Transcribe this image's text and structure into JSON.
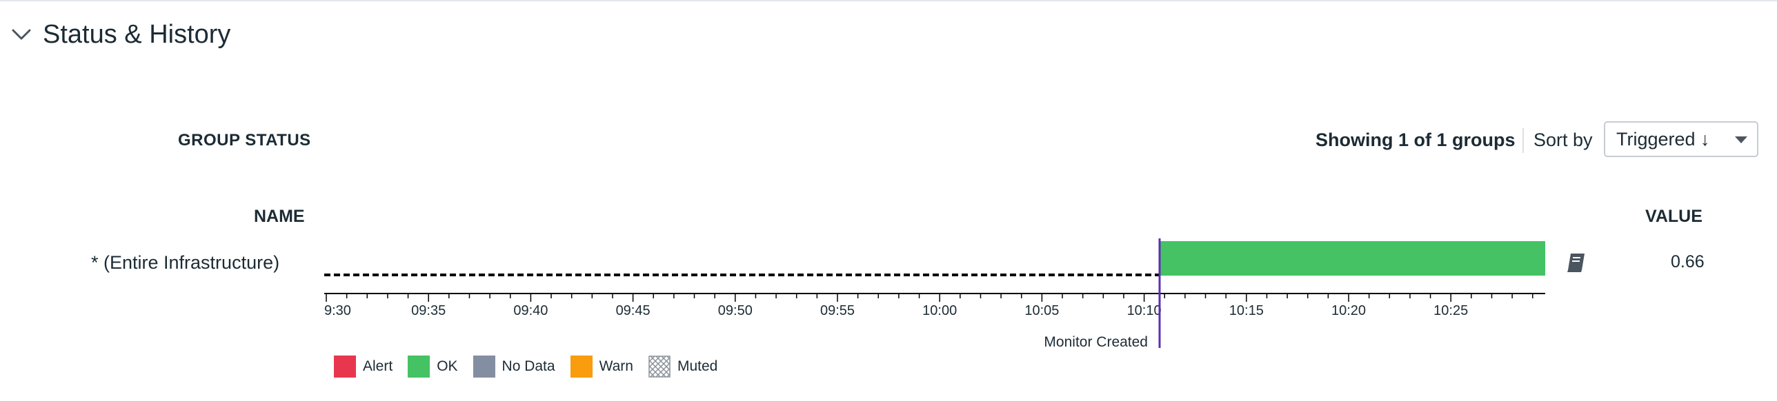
{
  "section": {
    "title": "Status & History"
  },
  "group_status": {
    "label": "GROUP STATUS",
    "showing": "Showing 1 of 1 groups",
    "sort_label": "Sort by",
    "sort_value": "Triggered ↓"
  },
  "table": {
    "name_header": "NAME",
    "value_header": "VALUE",
    "rows": [
      {
        "name": "* (Entire Infrastructure)",
        "value": "0.66"
      }
    ]
  },
  "timeline": {
    "ticks": [
      "9:30",
      "09:35",
      "09:40",
      "09:45",
      "09:50",
      "09:55",
      "10:00",
      "10:05",
      "10:10",
      "10:15",
      "10:20",
      "10:25"
    ],
    "marker_label": "Monitor Created",
    "status_segments": [
      {
        "status": "No Data",
        "from": "09:30",
        "to": "10:11",
        "style": "dashed"
      },
      {
        "status": "OK",
        "from": "10:11",
        "to": "10:30",
        "color": "#44c264"
      }
    ],
    "marker_color": "#5b2fb5"
  },
  "legend": [
    {
      "label": "Alert",
      "color": "#e8364f",
      "icon": "alert-swatch"
    },
    {
      "label": "OK",
      "color": "#44c264",
      "icon": "ok-swatch"
    },
    {
      "label": "No Data",
      "color": "#848ea3",
      "icon": "no-data-swatch"
    },
    {
      "label": "Warn",
      "color": "#f99c0d",
      "icon": "warn-swatch"
    },
    {
      "label": "Muted",
      "color": "hatched",
      "icon": "muted-swatch"
    }
  ]
}
